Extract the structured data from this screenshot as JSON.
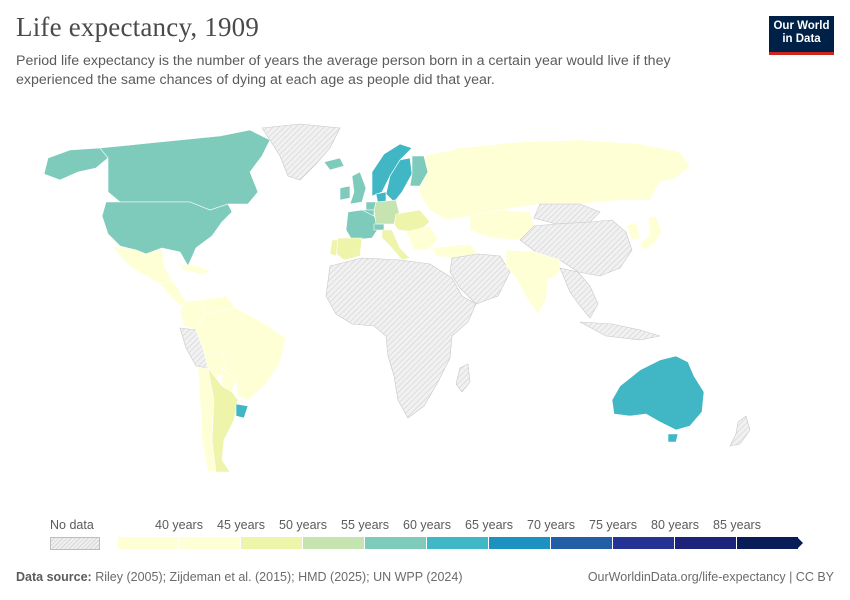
{
  "title": "Life expectancy, 1909",
  "subtitle": "Period life expectancy is the number of years the average person born in a certain year would live if they experienced the same chances of dying at each age as people did that year.",
  "logo": {
    "line1": "Our World",
    "line2": "in Data"
  },
  "legend": {
    "no_data_label": "No data",
    "bins": [
      "40 years",
      "45 years",
      "50 years",
      "55 years",
      "60 years",
      "65 years",
      "70 years",
      "75 years",
      "80 years",
      "85 years"
    ],
    "colors": [
      "#ffffd5",
      "#eef4a9",
      "#c5e4b2",
      "#7ecbbb",
      "#41b6c4",
      "#1d91c0",
      "#225ea8",
      "#253494",
      "#1b237a",
      "#081d58"
    ]
  },
  "footer": {
    "source_label": "Data source:",
    "source_text": "Riley (2005); Zijdeman et al. (2015); HMD (2025); UN WPP (2024)",
    "link": "OurWorldinData.org/life-expectancy | CC BY"
  },
  "map": {
    "nodata_color": "#ededed",
    "regions": [
      {
        "name": "Canada",
        "bin": 3
      },
      {
        "name": "United States",
        "bin": 3
      },
      {
        "name": "Alaska",
        "bin": 3
      },
      {
        "name": "Greenland",
        "bin": -1
      },
      {
        "name": "Mexico",
        "bin": 0
      },
      {
        "name": "Central America",
        "bin": 0
      },
      {
        "name": "Caribbean",
        "bin": 0
      },
      {
        "name": "Colombia",
        "bin": 0
      },
      {
        "name": "Venezuela",
        "bin": 0
      },
      {
        "name": "Peru",
        "bin": -1
      },
      {
        "name": "Brazil",
        "bin": 0
      },
      {
        "name": "Bolivia",
        "bin": 0
      },
      {
        "name": "Paraguay",
        "bin": 0
      },
      {
        "name": "Chile",
        "bin": 0
      },
      {
        "name": "Argentina",
        "bin": 1
      },
      {
        "name": "Uruguay",
        "bin": 4
      },
      {
        "name": "Iceland",
        "bin": 3
      },
      {
        "name": "Norway",
        "bin": 4
      },
      {
        "name": "Sweden",
        "bin": 4
      },
      {
        "name": "Finland",
        "bin": 3
      },
      {
        "name": "United Kingdom",
        "bin": 3
      },
      {
        "name": "Ireland",
        "bin": 3
      },
      {
        "name": "Denmark",
        "bin": 4
      },
      {
        "name": "Netherlands",
        "bin": 3
      },
      {
        "name": "Belgium",
        "bin": 3
      },
      {
        "name": "France",
        "bin": 3
      },
      {
        "name": "Switzerland",
        "bin": 3
      },
      {
        "name": "Germany",
        "bin": 2
      },
      {
        "name": "Spain",
        "bin": 1
      },
      {
        "name": "Portugal",
        "bin": 1
      },
      {
        "name": "Italy",
        "bin": 1
      },
      {
        "name": "Austria-Hungary",
        "bin": 1
      },
      {
        "name": "Balkans",
        "bin": 0
      },
      {
        "name": "Russia",
        "bin": 0
      },
      {
        "name": "Turkey",
        "bin": 0
      },
      {
        "name": "Middle East",
        "bin": -1
      },
      {
        "name": "Central Asia",
        "bin": 0
      },
      {
        "name": "China",
        "bin": -1
      },
      {
        "name": "Mongolia",
        "bin": -1
      },
      {
        "name": "India",
        "bin": 0
      },
      {
        "name": "Southeast Asia",
        "bin": -1
      },
      {
        "name": "Indonesia",
        "bin": -1
      },
      {
        "name": "Japan",
        "bin": 0
      },
      {
        "name": "Korea",
        "bin": 0
      },
      {
        "name": "Africa",
        "bin": -1
      },
      {
        "name": "Madagascar",
        "bin": -1
      },
      {
        "name": "Australia",
        "bin": 4
      },
      {
        "name": "Tasmania",
        "bin": 4
      },
      {
        "name": "New Zealand",
        "bin": -1
      }
    ]
  }
}
